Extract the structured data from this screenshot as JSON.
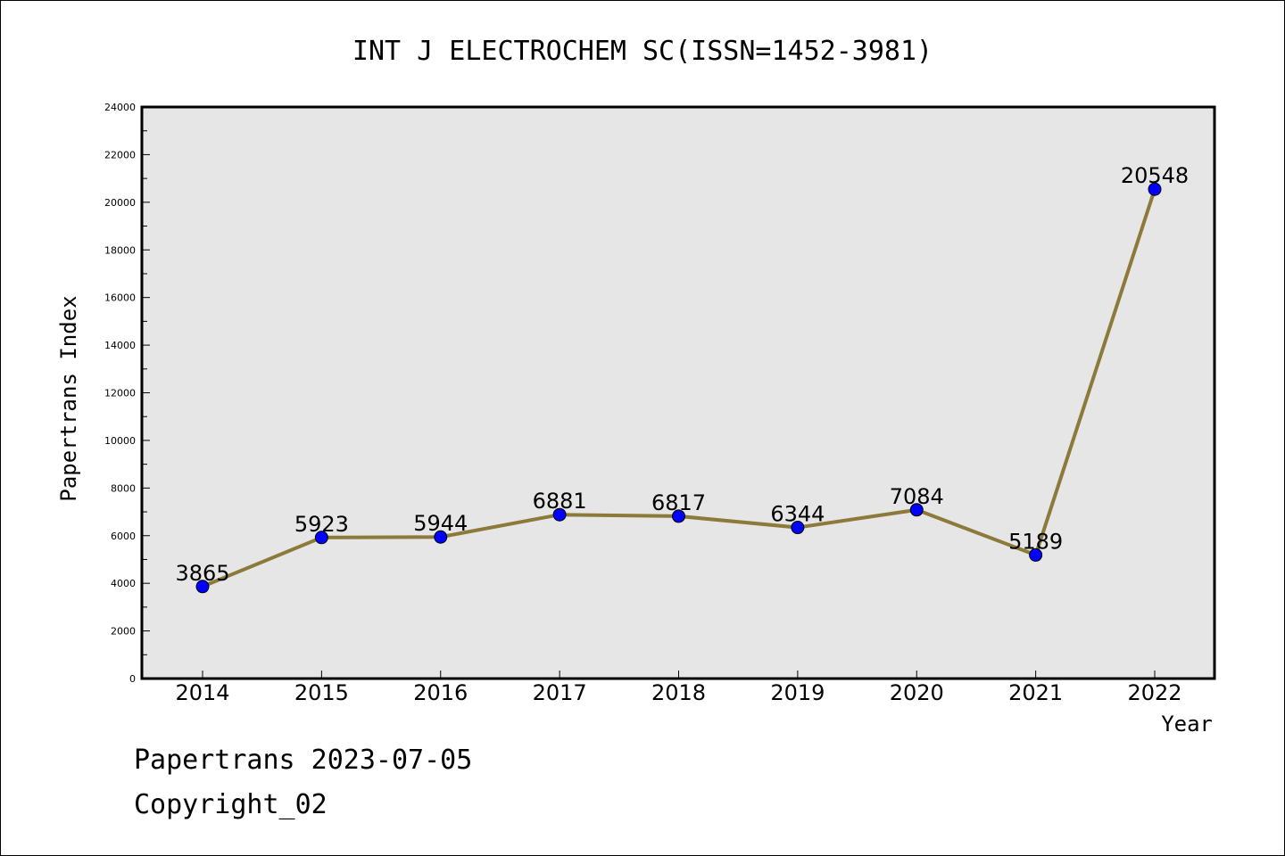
{
  "chart_data": {
    "type": "line",
    "title": "INT J ELECTROCHEM SC(ISSN=1452-3981)",
    "xlabel": "Year",
    "ylabel": "Papertrans Index",
    "categories": [
      "2014",
      "2015",
      "2016",
      "2017",
      "2018",
      "2019",
      "2020",
      "2021",
      "2022"
    ],
    "series": [
      {
        "values": [
          3865,
          5923,
          5944,
          6881,
          6817,
          6344,
          7084,
          5189,
          20548
        ],
        "line_color": "#8b7a3a",
        "marker_color": "#0000ff"
      }
    ],
    "data_labels": [
      "3865",
      "5923",
      "5944",
      "6881",
      "6817",
      "6344",
      "7084",
      "5189",
      "20548"
    ],
    "ylim": [
      0,
      24000
    ],
    "yticks": [
      "0",
      "2000",
      "4000",
      "6000",
      "8000",
      "10000",
      "12000",
      "14000",
      "16000",
      "18000",
      "20000",
      "22000",
      "24000"
    ],
    "plot_background": "#e6e6e6",
    "grid": false,
    "legend": "none"
  },
  "footer": {
    "line1": "Papertrans 2023-07-05",
    "line2": "Copyright_02"
  }
}
